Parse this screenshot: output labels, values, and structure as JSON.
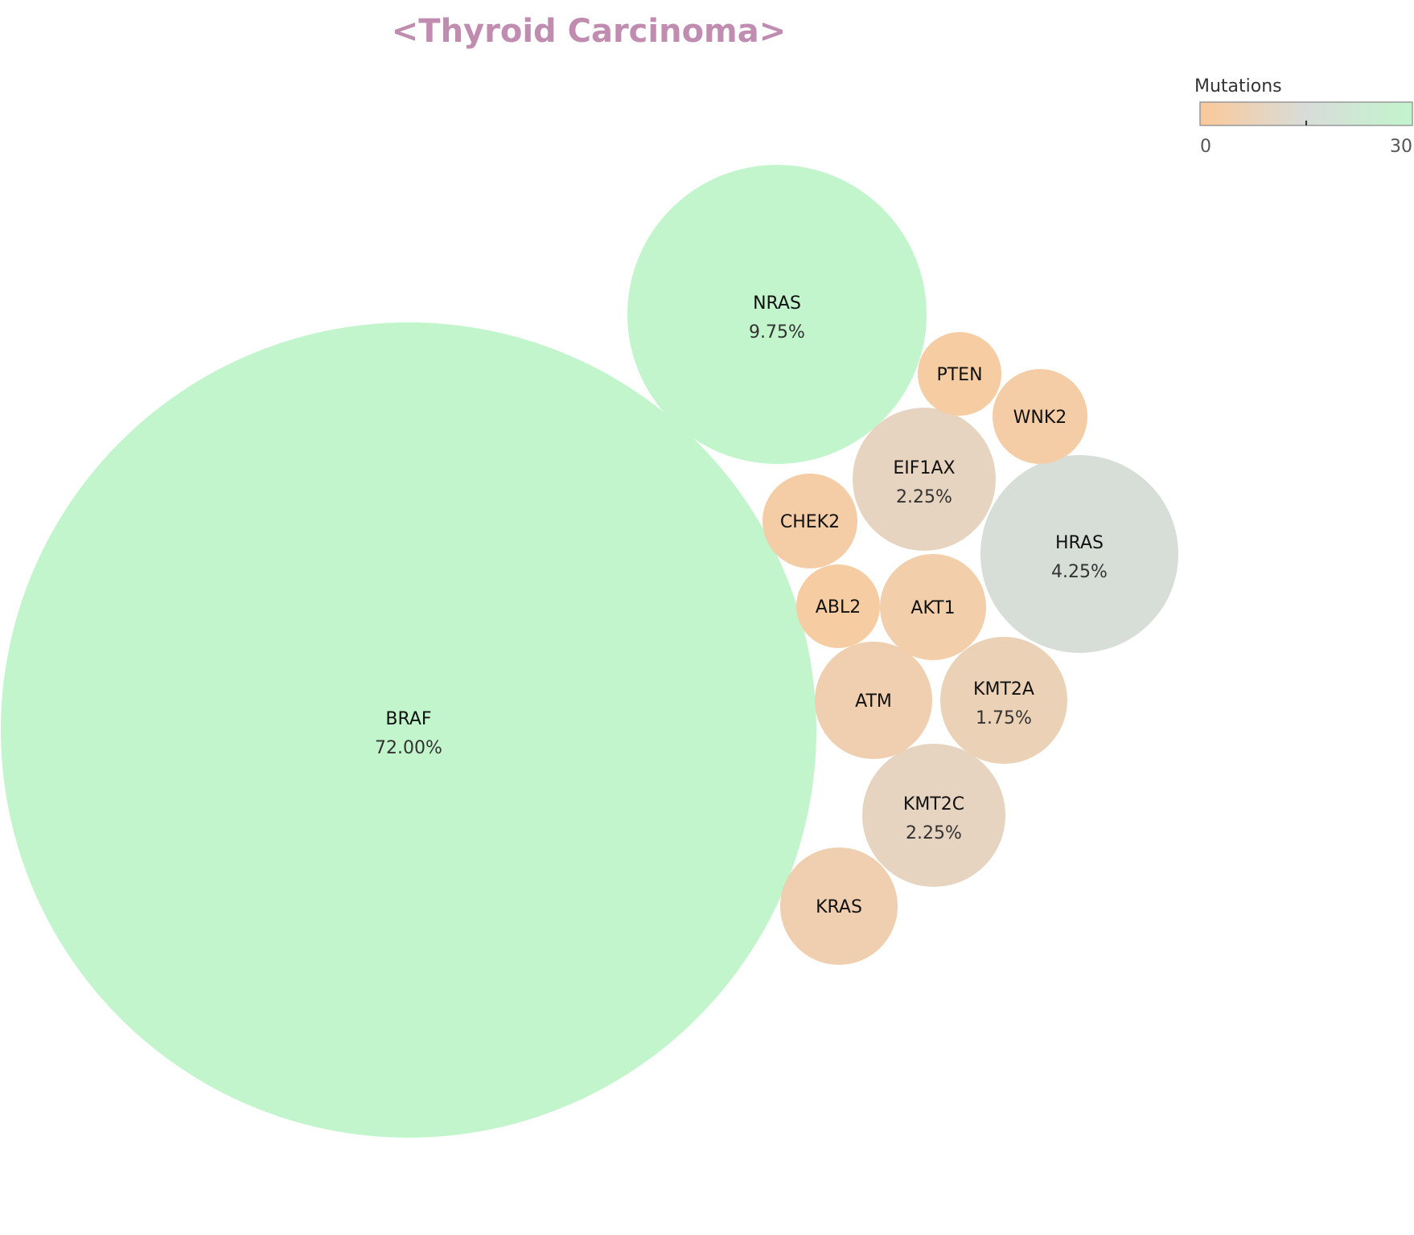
{
  "colors": {
    "low": "#fbc99a",
    "mid": "#d8dcd9",
    "high": "#c2f5cc",
    "title": "#c08db0"
  },
  "chart_data": {
    "type": "bubble",
    "title": "<Thyroid Carcinoma>",
    "legend": {
      "title": "Mutations",
      "min_label": "0",
      "max_label": "30",
      "min": 0,
      "max": 30,
      "placement": "top-right"
    },
    "bubbles": [
      {
        "gene": "BRAF",
        "pct_label": "72.00%",
        "percent": 72.0,
        "mutations": 30
      },
      {
        "gene": "NRAS",
        "pct_label": "9.75%",
        "percent": 9.75,
        "mutations": 30
      },
      {
        "gene": "HRAS",
        "pct_label": "4.25%",
        "percent": 4.25,
        "mutations": 16
      },
      {
        "gene": "EIF1AX",
        "pct_label": "2.25%",
        "percent": 2.25,
        "mutations": 9
      },
      {
        "gene": "KMT2C",
        "pct_label": "2.25%",
        "percent": 2.25,
        "mutations": 9
      },
      {
        "gene": "KMT2A",
        "pct_label": "1.75%",
        "percent": 1.75,
        "mutations": 7
      },
      {
        "gene": "ATM",
        "pct_label": "",
        "percent": 1.25,
        "mutations": 5
      },
      {
        "gene": "KRAS",
        "pct_label": "",
        "percent": 1.25,
        "mutations": 5
      },
      {
        "gene": "AKT1",
        "pct_label": "",
        "percent": 1.0,
        "mutations": 4
      },
      {
        "gene": "CHEK2",
        "pct_label": "",
        "percent": 0.75,
        "mutations": 3
      },
      {
        "gene": "WNK2",
        "pct_label": "",
        "percent": 0.75,
        "mutations": 3
      },
      {
        "gene": "PTEN",
        "pct_label": "",
        "percent": 0.5,
        "mutations": 2
      },
      {
        "gene": "ABL2",
        "pct_label": "",
        "percent": 0.5,
        "mutations": 2
      }
    ]
  }
}
